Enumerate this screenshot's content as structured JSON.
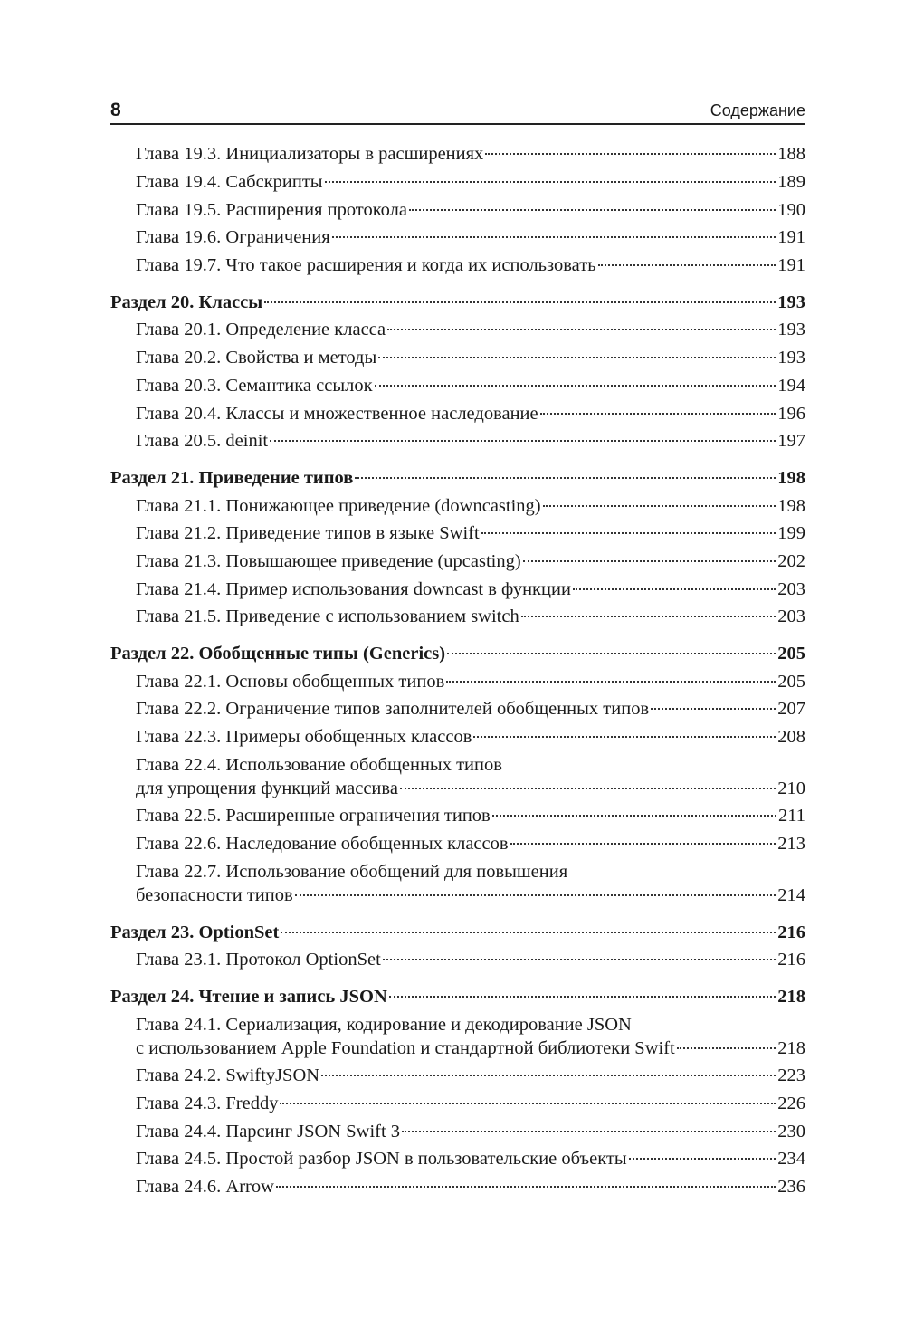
{
  "header": {
    "page_number": "8",
    "running_title": "Содержание"
  },
  "sections": [
    {
      "title": null,
      "page": null,
      "entries": [
        {
          "lines": [
            "Глава 19.3. Инициализаторы в  расширениях"
          ],
          "page": "188"
        },
        {
          "lines": [
            "Глава 19.4. Сабскрипты"
          ],
          "page": "189"
        },
        {
          "lines": [
            "Глава 19.5. Расширения протокола"
          ],
          "page": "190"
        },
        {
          "lines": [
            "Глава 19.6. Ограничения"
          ],
          "page": "191"
        },
        {
          "lines": [
            "Глава 19.7. Что такое расширения и когда их использовать"
          ],
          "page": "191"
        }
      ]
    },
    {
      "title": "Раздел 20. Классы",
      "page": "193",
      "entries": [
        {
          "lines": [
            "Глава 20.1. Определение класса"
          ],
          "page": "193"
        },
        {
          "lines": [
            "Глава 20.2. Свойства и методы"
          ],
          "page": "193"
        },
        {
          "lines": [
            "Глава 20.3. Семантика ссылок"
          ],
          "page": "194"
        },
        {
          "lines": [
            "Глава 20.4. Классы и множественное наследование"
          ],
          "page": "196"
        },
        {
          "lines": [
            "Глава 20.5. deinit"
          ],
          "page": "197"
        }
      ]
    },
    {
      "title": "Раздел 21. Приведение типов",
      "page": "198",
      "entries": [
        {
          "lines": [
            "Глава 21.1. Понижающее приведение (downcasting)"
          ],
          "page": "198"
        },
        {
          "lines": [
            "Глава 21.2. Приведение типов в языке Swift"
          ],
          "page": "199"
        },
        {
          "lines": [
            "Глава 21.3. Повышающее приведение (upcasting)"
          ],
          "page": "202"
        },
        {
          "lines": [
            "Глава 21.4. Пример использования downcast в функции"
          ],
          "page": "203"
        },
        {
          "lines": [
            "Глава 21.5. Приведение с использованием switch"
          ],
          "page": "203"
        }
      ]
    },
    {
      "title": "Раздел 22. Обобщенные типы (Generics)",
      "page": "205",
      "entries": [
        {
          "lines": [
            "Глава 22.1. Основы обобщенных типов"
          ],
          "page": "205"
        },
        {
          "lines": [
            "Глава 22.2. Ограничение типов заполнителей обобщенных типов"
          ],
          "page": "207"
        },
        {
          "lines": [
            "Глава 22.3. Примеры обобщенных классов"
          ],
          "page": "208"
        },
        {
          "lines": [
            "Глава 22.4. Использование обобщенных типов",
            "для упрощения функций массива"
          ],
          "page": "210"
        },
        {
          "lines": [
            "Глава 22.5. Расширенные ограничения типов"
          ],
          "page": "211"
        },
        {
          "lines": [
            "Глава 22.6. Наследование обобщенных классов"
          ],
          "page": "213"
        },
        {
          "lines": [
            "Глава 22.7. Использование обобщений для повышения",
            "безопасности типов"
          ],
          "page": "214"
        }
      ]
    },
    {
      "title": "Раздел 23. OptionSet",
      "page": "216",
      "entries": [
        {
          "lines": [
            "Глава 23.1. Протокол OptionSet"
          ],
          "page": "216"
        }
      ]
    },
    {
      "title": "Раздел 24. Чтение и запись JSON",
      "page": "218",
      "entries": [
        {
          "lines": [
            "Глава 24.1. Сериализация, кодирование и декодирование JSON",
            "с использованием Apple Foundation и стандартной библиотеки Swift"
          ],
          "page": "218"
        },
        {
          "lines": [
            "Глава 24.2. SwiftyJSON"
          ],
          "page": "223"
        },
        {
          "lines": [
            "Глава 24.3. Freddy"
          ],
          "page": "226"
        },
        {
          "lines": [
            "Глава 24.4. Парсинг JSON Swift 3"
          ],
          "page": "230"
        },
        {
          "lines": [
            "Глава 24.5. Простой разбор JSON в пользовательские объекты"
          ],
          "page": "234"
        },
        {
          "lines": [
            "Глава 24.6. Arrow"
          ],
          "page": "236"
        }
      ]
    }
  ]
}
